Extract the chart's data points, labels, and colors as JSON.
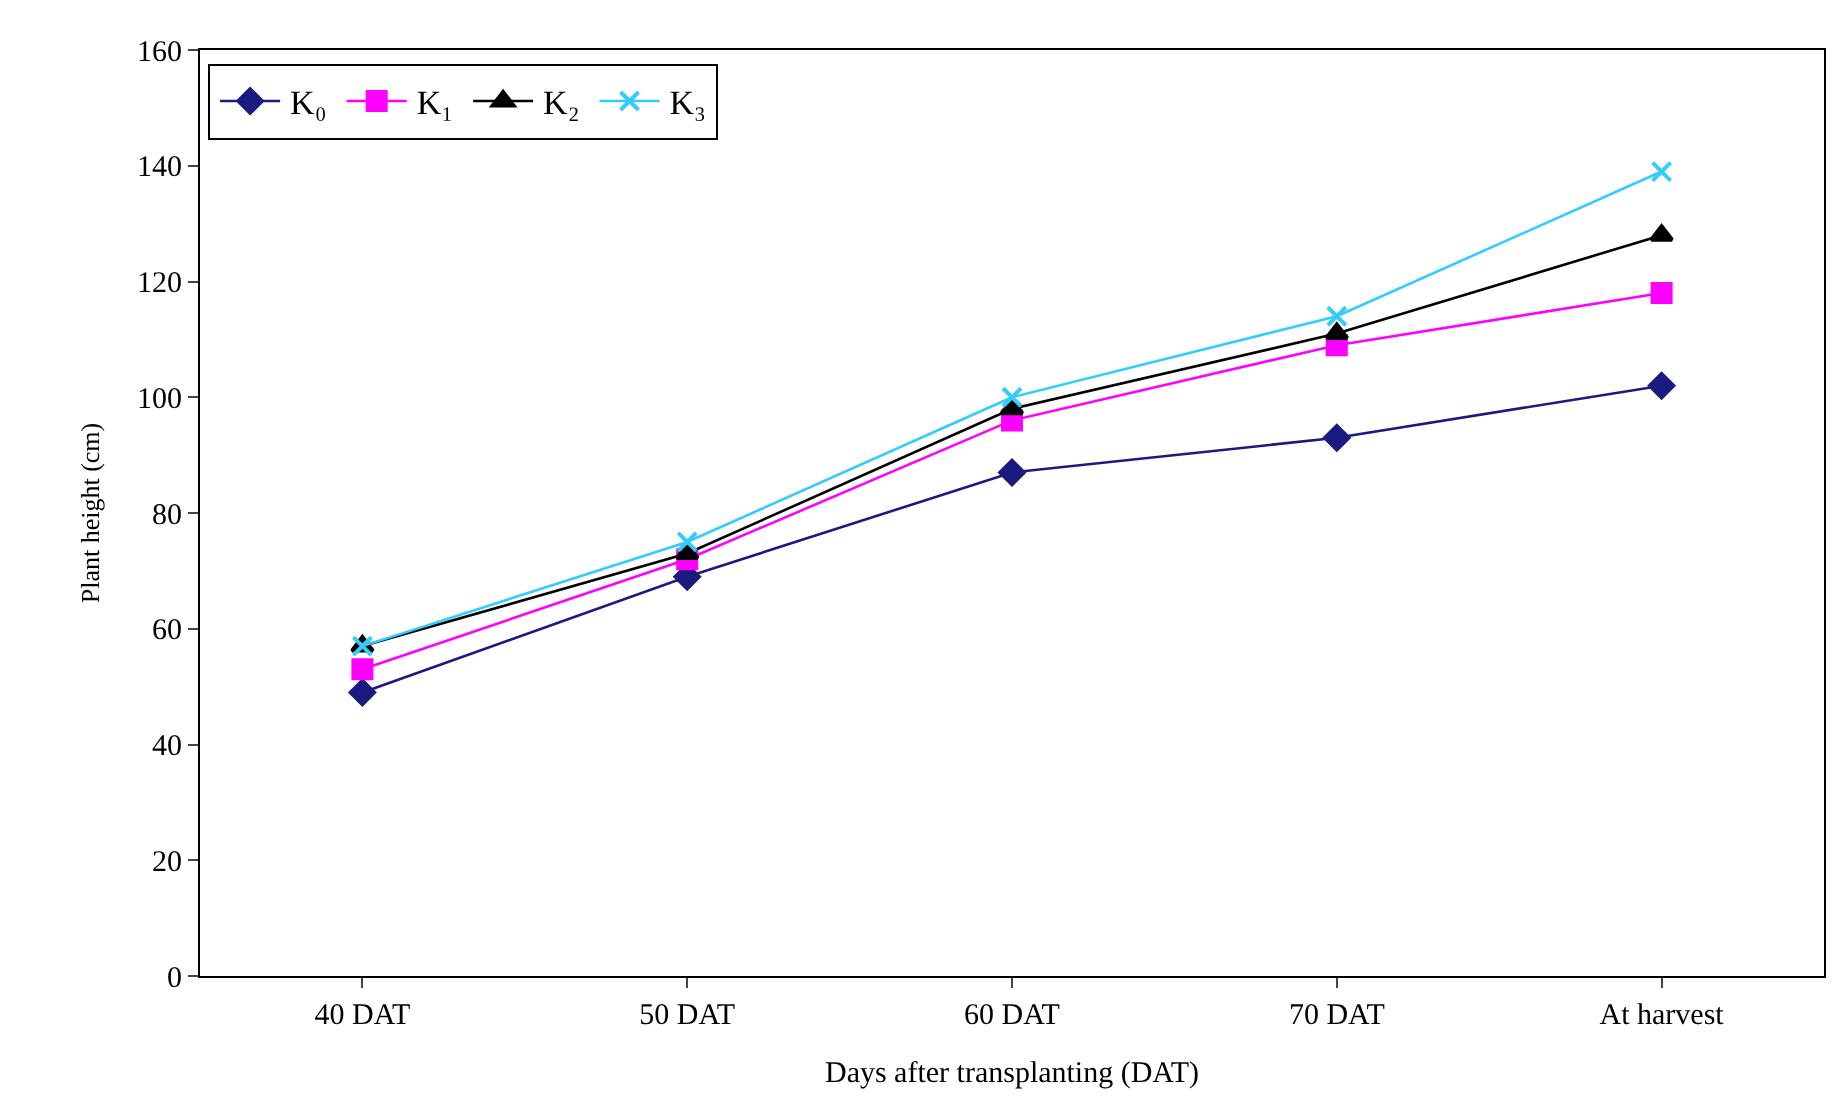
{
  "chart_data": {
    "type": "line",
    "xlabel": "Days after transplanting (DAT)",
    "ylabel": "Plant height (cm)",
    "categories": [
      "40 DAT",
      "50 DAT",
      "60 DAT",
      "70 DAT",
      "At harvest"
    ],
    "ylim": [
      0,
      160
    ],
    "yticks": [
      0,
      20,
      40,
      60,
      80,
      100,
      120,
      140,
      160
    ],
    "legend": "top left",
    "series": [
      {
        "name": "K₀",
        "color": "#1a1a80",
        "marker": "diamond",
        "values": [
          49,
          69,
          87,
          93,
          102
        ]
      },
      {
        "name": "K₁",
        "color": "#ff00ff",
        "marker": "square",
        "values": [
          53,
          72,
          96,
          109,
          118
        ]
      },
      {
        "name": "K₂",
        "color": "#000000",
        "marker": "triangle",
        "values": [
          57,
          73,
          98,
          111,
          128
        ]
      },
      {
        "name": "K₃",
        "color": "#33ccff",
        "marker": "cross",
        "values": [
          57,
          75,
          100,
          114,
          139
        ]
      }
    ]
  }
}
